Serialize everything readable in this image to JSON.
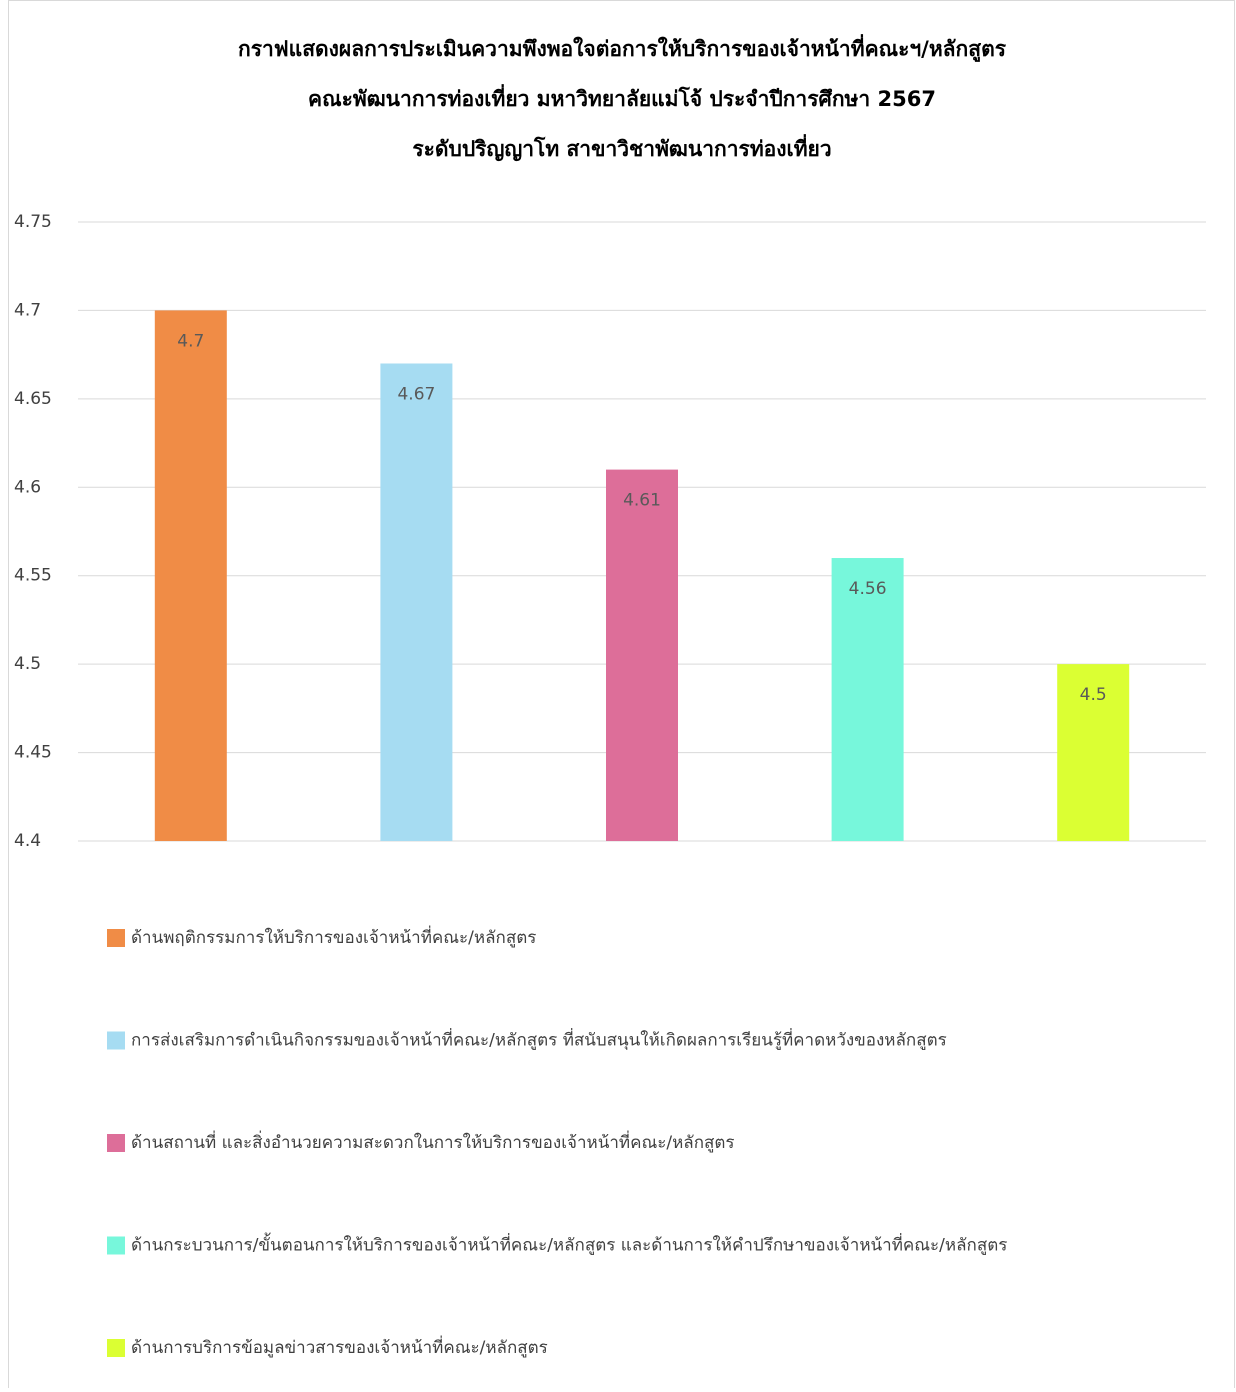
{
  "chart_data": {
    "type": "bar",
    "title": [
      "กราฟแสดงผลการประเมินความพึงพอใจต่อการให้บริการของเจ้าหน้าที่คณะฯ/หลักสูตร",
      "คณะพัฒนาการท่องเที่ยว มหาวิทยาลัยแม่โจ้ ประจำปีการศึกษา 2567",
      "ระดับปริญญาโท สาขาวิชาพัฒนาการท่องเที่ยว"
    ],
    "series": [
      {
        "name": "ด้านพฤติกรรมการให้บริการของเจ้าหน้าที่คณะ/หลักสูตร",
        "color": "#F08C46",
        "values": [
          4.7
        ]
      },
      {
        "name": "การส่งเสริมการดำเนินกิจกรรมของเจ้าหน้าที่คณะ/หลักสูตร ที่สนับสนุนให้เกิดผลการเรียนรู้ที่คาดหวังของหลักสูตร",
        "color": "#A6DCF2",
        "values": [
          4.67
        ]
      },
      {
        "name": "ด้านสถานที่ และสิ่งอำนวยความสะดวกในการให้บริการของเจ้าหน้าที่คณะ/หลักสูตร",
        "color": "#DD6E99",
        "values": [
          4.61
        ]
      },
      {
        "name": "ด้านกระบวนการ/ขั้นตอนการให้บริการของเจ้าหน้าที่คณะ/หลักสูตร และด้านการให้คำปรึกษาของเจ้าหน้าที่คณะ/หลักสูตร",
        "color": "#77F7DB",
        "values": [
          4.56
        ]
      },
      {
        "name": "ด้านการบริการข้อมูลข่าวสารของเจ้าหน้าที่คณะ/หลักสูตร",
        "color": "#DBFF33",
        "values": [
          4.5
        ]
      }
    ],
    "ylim": [
      4.4,
      4.75
    ],
    "yticks": [
      4.4,
      4.45,
      4.5,
      4.55,
      4.6,
      4.65,
      4.7,
      4.75
    ],
    "grid": true
  }
}
